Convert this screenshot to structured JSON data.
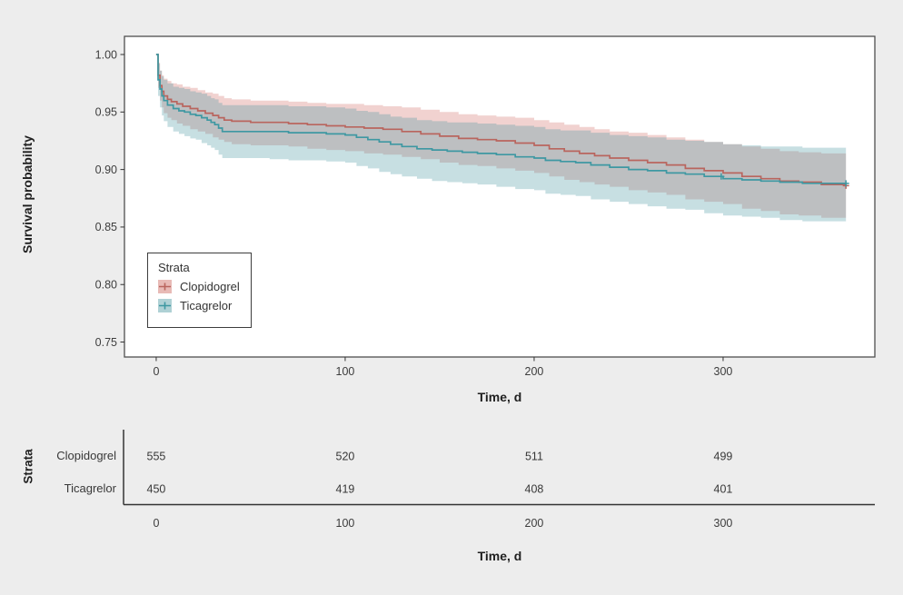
{
  "figure": {
    "background": "#ededed",
    "panel_fill": "#ffffff",
    "panel_border": "#4f4f4f",
    "axis_text_color": "#3d3d3d",
    "table_line_color": "#333333"
  },
  "chart_data": {
    "type": "line",
    "variant": "kaplan-meier-step-with-confidence-bands",
    "title": "",
    "x": {
      "label": "Time, d",
      "ticks": [
        "0",
        "100",
        "200",
        "300"
      ],
      "tick_values": [
        0,
        100,
        200,
        300
      ],
      "range": [
        -16.8,
        380.3
      ]
    },
    "y": {
      "label": "Survival probability",
      "ticks": [
        "1.00",
        "0.95",
        "0.90",
        "0.85",
        "0.80",
        "0.75"
      ],
      "tick_values": [
        1.0,
        0.95,
        0.9,
        0.85,
        0.8,
        0.75
      ],
      "range": [
        0.737,
        1.0158
      ]
    },
    "legend": {
      "title": "Strata",
      "position": "inside-bottom-left"
    },
    "series": [
      {
        "name": "Clopidogrel",
        "line_color": "#b9655e",
        "band_color": "rgba(203,90,80,0.27)",
        "legend_fill": "rgba(200,90,80,0.42)",
        "censor_points": [
          [
            365,
            0.886
          ]
        ],
        "points": [
          [
            0,
            1.0,
            1.0,
            1.0
          ],
          [
            1,
            0.982,
            0.971,
            0.993
          ],
          [
            2,
            0.973,
            0.96,
            0.986
          ],
          [
            3,
            0.968,
            0.954,
            0.982
          ],
          [
            4,
            0.964,
            0.949,
            0.979
          ],
          [
            6,
            0.961,
            0.945,
            0.977
          ],
          [
            8,
            0.959,
            0.943,
            0.975
          ],
          [
            11,
            0.957,
            0.94,
            0.974
          ],
          [
            14,
            0.955,
            0.938,
            0.972
          ],
          [
            18,
            0.953,
            0.935,
            0.971
          ],
          [
            22,
            0.951,
            0.933,
            0.969
          ],
          [
            26,
            0.949,
            0.931,
            0.967
          ],
          [
            30,
            0.947,
            0.928,
            0.966
          ],
          [
            33,
            0.945,
            0.926,
            0.964
          ],
          [
            36,
            0.943,
            0.924,
            0.962
          ],
          [
            40,
            0.942,
            0.922,
            0.961
          ],
          [
            50,
            0.941,
            0.921,
            0.96
          ],
          [
            62,
            0.941,
            0.921,
            0.96
          ],
          [
            70,
            0.94,
            0.92,
            0.959
          ],
          [
            80,
            0.939,
            0.918,
            0.958
          ],
          [
            90,
            0.938,
            0.917,
            0.957
          ],
          [
            100,
            0.937,
            0.916,
            0.957
          ],
          [
            110,
            0.936,
            0.914,
            0.956
          ],
          [
            120,
            0.935,
            0.913,
            0.955
          ],
          [
            130,
            0.933,
            0.911,
            0.954
          ],
          [
            140,
            0.931,
            0.909,
            0.952
          ],
          [
            150,
            0.929,
            0.906,
            0.95
          ],
          [
            160,
            0.927,
            0.904,
            0.948
          ],
          [
            170,
            0.926,
            0.903,
            0.947
          ],
          [
            180,
            0.925,
            0.901,
            0.946
          ],
          [
            190,
            0.923,
            0.899,
            0.945
          ],
          [
            200,
            0.921,
            0.897,
            0.943
          ],
          [
            208,
            0.918,
            0.894,
            0.941
          ],
          [
            216,
            0.916,
            0.891,
            0.939
          ],
          [
            224,
            0.914,
            0.889,
            0.937
          ],
          [
            232,
            0.912,
            0.887,
            0.935
          ],
          [
            240,
            0.91,
            0.885,
            0.933
          ],
          [
            250,
            0.908,
            0.882,
            0.932
          ],
          [
            260,
            0.906,
            0.88,
            0.93
          ],
          [
            270,
            0.904,
            0.878,
            0.928
          ],
          [
            280,
            0.901,
            0.874,
            0.926
          ],
          [
            290,
            0.899,
            0.872,
            0.924
          ],
          [
            300,
            0.897,
            0.87,
            0.922
          ],
          [
            310,
            0.894,
            0.866,
            0.92
          ],
          [
            320,
            0.892,
            0.864,
            0.918
          ],
          [
            330,
            0.89,
            0.861,
            0.916
          ],
          [
            340,
            0.889,
            0.86,
            0.915
          ],
          [
            352,
            0.887,
            0.858,
            0.914
          ],
          [
            365,
            0.886,
            0.856,
            0.913
          ]
        ]
      },
      {
        "name": "Ticagrelor",
        "line_color": "#3e98a2",
        "band_color": "rgba(70,148,158,0.30)",
        "legend_fill": "rgba(64,145,155,0.42)",
        "censor_points": [
          [
            299,
            0.894
          ],
          [
            365,
            0.888
          ]
        ],
        "points": [
          [
            0,
            1.0,
            1.0,
            1.0
          ],
          [
            1,
            0.978,
            0.964,
            0.992
          ],
          [
            2,
            0.97,
            0.954,
            0.986
          ],
          [
            3,
            0.964,
            0.947,
            0.981
          ],
          [
            4,
            0.96,
            0.942,
            0.978
          ],
          [
            6,
            0.956,
            0.937,
            0.975
          ],
          [
            9,
            0.953,
            0.933,
            0.972
          ],
          [
            12,
            0.951,
            0.931,
            0.971
          ],
          [
            15,
            0.95,
            0.929,
            0.97
          ],
          [
            18,
            0.948,
            0.927,
            0.968
          ],
          [
            21,
            0.947,
            0.926,
            0.967
          ],
          [
            24,
            0.945,
            0.923,
            0.966
          ],
          [
            27,
            0.943,
            0.921,
            0.964
          ],
          [
            29,
            0.941,
            0.919,
            0.962
          ],
          [
            31,
            0.939,
            0.917,
            0.961
          ],
          [
            33,
            0.936,
            0.913,
            0.958
          ],
          [
            35,
            0.933,
            0.91,
            0.956
          ],
          [
            48,
            0.933,
            0.91,
            0.956
          ],
          [
            60,
            0.933,
            0.909,
            0.956
          ],
          [
            70,
            0.932,
            0.908,
            0.955
          ],
          [
            80,
            0.932,
            0.908,
            0.955
          ],
          [
            90,
            0.931,
            0.907,
            0.954
          ],
          [
            100,
            0.93,
            0.906,
            0.953
          ],
          [
            106,
            0.928,
            0.903,
            0.951
          ],
          [
            112,
            0.926,
            0.901,
            0.95
          ],
          [
            118,
            0.924,
            0.898,
            0.948
          ],
          [
            124,
            0.922,
            0.896,
            0.946
          ],
          [
            130,
            0.92,
            0.894,
            0.945
          ],
          [
            138,
            0.918,
            0.892,
            0.943
          ],
          [
            146,
            0.917,
            0.89,
            0.942
          ],
          [
            154,
            0.916,
            0.889,
            0.941
          ],
          [
            162,
            0.915,
            0.888,
            0.941
          ],
          [
            170,
            0.914,
            0.887,
            0.94
          ],
          [
            180,
            0.913,
            0.885,
            0.939
          ],
          [
            190,
            0.911,
            0.883,
            0.938
          ],
          [
            200,
            0.91,
            0.882,
            0.937
          ],
          [
            206,
            0.908,
            0.879,
            0.935
          ],
          [
            214,
            0.907,
            0.878,
            0.934
          ],
          [
            222,
            0.906,
            0.877,
            0.934
          ],
          [
            230,
            0.904,
            0.874,
            0.932
          ],
          [
            240,
            0.902,
            0.872,
            0.93
          ],
          [
            250,
            0.9,
            0.87,
            0.929
          ],
          [
            260,
            0.899,
            0.868,
            0.928
          ],
          [
            270,
            0.897,
            0.866,
            0.926
          ],
          [
            280,
            0.896,
            0.865,
            0.925
          ],
          [
            290,
            0.894,
            0.862,
            0.924
          ],
          [
            300,
            0.892,
            0.86,
            0.922
          ],
          [
            310,
            0.891,
            0.859,
            0.921
          ],
          [
            320,
            0.89,
            0.858,
            0.92
          ],
          [
            330,
            0.889,
            0.856,
            0.92
          ],
          [
            342,
            0.888,
            0.855,
            0.919
          ],
          [
            365,
            0.888,
            0.855,
            0.919
          ]
        ]
      }
    ]
  },
  "risk_table": {
    "title": "Strata",
    "x_label": "Time, d",
    "ticks": [
      "0",
      "100",
      "200",
      "300"
    ],
    "tick_values": [
      0,
      100,
      200,
      300
    ],
    "rows": [
      {
        "label": "Clopidogrel",
        "counts": [
          "555",
          "520",
          "511",
          "499"
        ]
      },
      {
        "label": "Ticagrelor",
        "counts": [
          "450",
          "419",
          "408",
          "401"
        ]
      }
    ]
  }
}
